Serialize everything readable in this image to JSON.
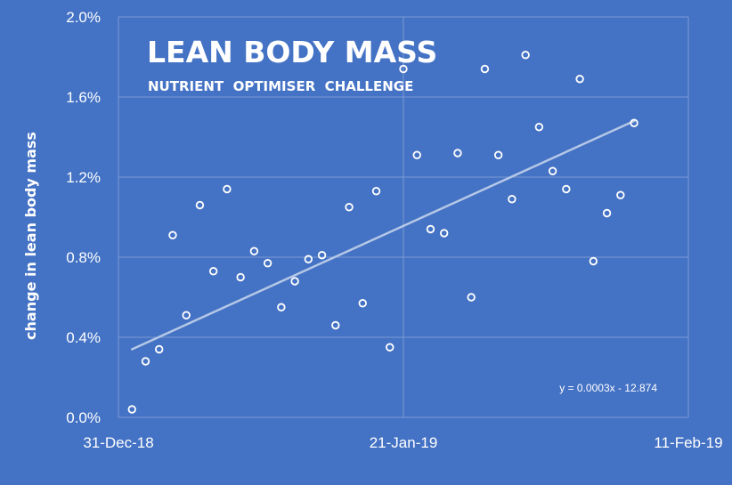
{
  "chart_data": {
    "type": "scatter",
    "title": "LEAN BODY MASS",
    "subtitle": "NUTRIENT  OPTIMISER  CHALLENGE",
    "xlabel": "",
    "ylabel": "change in lean body mass",
    "x_ticks": [
      "31-Dec-18",
      "21-Jan-19",
      "11-Feb-19"
    ],
    "y_ticks": [
      "0.0%",
      "0.4%",
      "0.8%",
      "1.2%",
      "1.6%",
      "2.0%"
    ],
    "xlim": [
      "2018-12-31",
      "2019-02-11"
    ],
    "ylim": [
      0.0,
      2.0
    ],
    "grid": true,
    "points": [
      {
        "x": "2019-01-01",
        "y": 0.04
      },
      {
        "x": "2019-01-02",
        "y": 0.28
      },
      {
        "x": "2019-01-03",
        "y": 0.34
      },
      {
        "x": "2019-01-04",
        "y": 0.91
      },
      {
        "x": "2019-01-05",
        "y": 0.51
      },
      {
        "x": "2019-01-06",
        "y": 1.06
      },
      {
        "x": "2019-01-07",
        "y": 0.73
      },
      {
        "x": "2019-01-08",
        "y": 1.14
      },
      {
        "x": "2019-01-09",
        "y": 0.7
      },
      {
        "x": "2019-01-10",
        "y": 0.83
      },
      {
        "x": "2019-01-11",
        "y": 0.77
      },
      {
        "x": "2019-01-12",
        "y": 0.55
      },
      {
        "x": "2019-01-13",
        "y": 0.68
      },
      {
        "x": "2019-01-14",
        "y": 0.79
      },
      {
        "x": "2019-01-15",
        "y": 0.81
      },
      {
        "x": "2019-01-16",
        "y": 0.46
      },
      {
        "x": "2019-01-17",
        "y": 1.05
      },
      {
        "x": "2019-01-18",
        "y": 0.57
      },
      {
        "x": "2019-01-19",
        "y": 1.13
      },
      {
        "x": "2019-01-20",
        "y": 0.35
      },
      {
        "x": "2019-01-21",
        "y": 1.74
      },
      {
        "x": "2019-01-22",
        "y": 1.31
      },
      {
        "x": "2019-01-23",
        "y": 0.94
      },
      {
        "x": "2019-01-24",
        "y": 0.92
      },
      {
        "x": "2019-01-25",
        "y": 1.32
      },
      {
        "x": "2019-01-26",
        "y": 0.6
      },
      {
        "x": "2019-01-27",
        "y": 1.74
      },
      {
        "x": "2019-01-28",
        "y": 1.31
      },
      {
        "x": "2019-01-29",
        "y": 1.09
      },
      {
        "x": "2019-01-30",
        "y": 1.81
      },
      {
        "x": "2019-01-31",
        "y": 1.45
      },
      {
        "x": "2019-02-01",
        "y": 1.23
      },
      {
        "x": "2019-02-02",
        "y": 1.14
      },
      {
        "x": "2019-02-03",
        "y": 1.69
      },
      {
        "x": "2019-02-04",
        "y": 0.78
      },
      {
        "x": "2019-02-05",
        "y": 1.02
      },
      {
        "x": "2019-02-06",
        "y": 1.11
      },
      {
        "x": "2019-02-07",
        "y": 1.47
      }
    ],
    "trendline": {
      "equation": "y = 0.0003x - 12.874",
      "start": {
        "x": "2019-01-01",
        "y": 0.34
      },
      "end": {
        "x": "2019-02-07",
        "y": 1.48
      }
    }
  },
  "colors": {
    "background": "#4472c4",
    "text": "#ffffff",
    "gridline": "#7d9bd5",
    "trendline": "#b4c7e7",
    "marker_stroke": "#ffffff"
  }
}
